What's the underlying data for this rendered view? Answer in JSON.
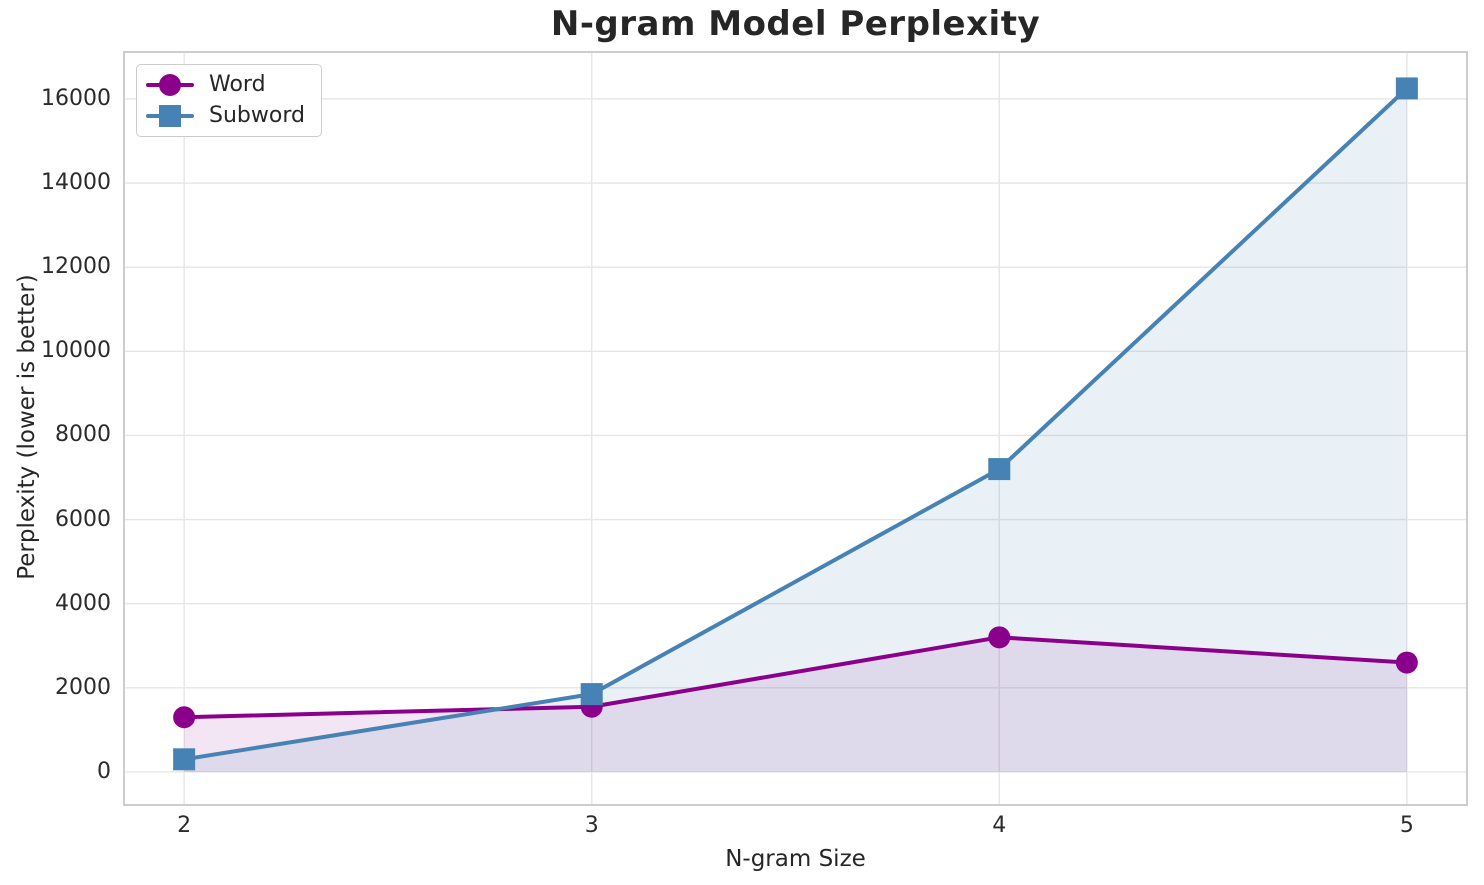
{
  "chart_data": {
    "type": "line",
    "title": "N-gram Model Perplexity",
    "xlabel": "N-gram Size",
    "ylabel": "Perplexity (lower is better)",
    "x": [
      2,
      3,
      4,
      5
    ],
    "series": [
      {
        "name": "Word",
        "marker": "circle",
        "color": "#8B008B",
        "fill_opacity": 0.1,
        "values": [
          1300,
          1550,
          3200,
          2600
        ]
      },
      {
        "name": "Subword",
        "marker": "square",
        "color": "#4682B4",
        "fill_opacity": 0.12,
        "values": [
          300,
          1850,
          7200,
          16250
        ]
      }
    ],
    "fill_to_zero": true,
    "grid": true,
    "legend_position": "upper left",
    "xlim": [
      1.85,
      5.15
    ],
    "ylim": [
      -810,
      17140
    ],
    "xticks": [
      2,
      3,
      4,
      5
    ],
    "yticks": [
      0,
      2000,
      4000,
      6000,
      8000,
      10000,
      12000,
      14000,
      16000
    ]
  },
  "colors": {
    "grid": "#e6e6e6",
    "spine": "#cdcdcd",
    "text": "#262626",
    "background": "#ffffff"
  }
}
